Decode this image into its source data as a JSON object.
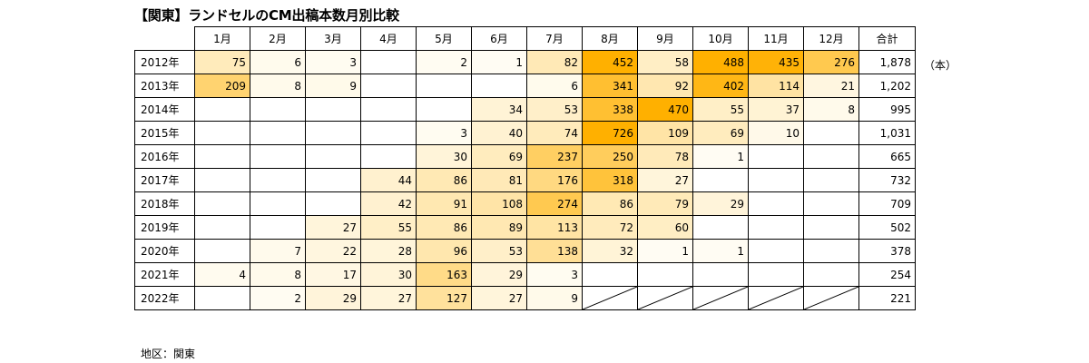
{
  "chart_data": {
    "type": "table",
    "title": "【関東】ランドセルのCM出稿本数月別比較",
    "unit": "（本）",
    "footnote": "地区：関東",
    "columns": [
      "1月",
      "2月",
      "3月",
      "4月",
      "5月",
      "6月",
      "7月",
      "8月",
      "9月",
      "10月",
      "11月",
      "12月"
    ],
    "total_label": "合計",
    "colors": {
      "low": "#fffdf5",
      "high": "#ffb000",
      "max_value": 726
    },
    "rows": [
      {
        "year": "2012年",
        "values": [
          75,
          6,
          3,
          null,
          2,
          1,
          82,
          452,
          58,
          488,
          435,
          276
        ],
        "total": "1,878"
      },
      {
        "year": "2013年",
        "values": [
          209,
          8,
          9,
          null,
          null,
          null,
          6,
          341,
          92,
          402,
          114,
          21
        ],
        "total": "1,202"
      },
      {
        "year": "2014年",
        "values": [
          null,
          null,
          null,
          null,
          null,
          34,
          53,
          338,
          470,
          55,
          37,
          8
        ],
        "total": "995"
      },
      {
        "year": "2015年",
        "values": [
          null,
          null,
          null,
          null,
          3,
          40,
          74,
          726,
          109,
          69,
          10,
          null
        ],
        "total": "1,031"
      },
      {
        "year": "2016年",
        "values": [
          null,
          null,
          null,
          null,
          30,
          69,
          237,
          250,
          78,
          1,
          null,
          null
        ],
        "total": "665"
      },
      {
        "year": "2017年",
        "values": [
          null,
          null,
          null,
          44,
          86,
          81,
          176,
          318,
          27,
          null,
          null,
          null
        ],
        "total": "732"
      },
      {
        "year": "2018年",
        "values": [
          null,
          null,
          null,
          42,
          91,
          108,
          274,
          86,
          79,
          29,
          null,
          null
        ],
        "total": "709"
      },
      {
        "year": "2019年",
        "values": [
          null,
          null,
          27,
          55,
          86,
          89,
          113,
          72,
          60,
          null,
          null,
          null
        ],
        "total": "502"
      },
      {
        "year": "2020年",
        "values": [
          null,
          7,
          22,
          28,
          96,
          53,
          138,
          32,
          1,
          1,
          null,
          null
        ],
        "total": "378"
      },
      {
        "year": "2021年",
        "values": [
          4,
          8,
          17,
          30,
          163,
          29,
          3,
          null,
          null,
          null,
          null,
          null
        ],
        "total": "254"
      },
      {
        "year": "2022年",
        "values": [
          null,
          2,
          29,
          27,
          127,
          27,
          9,
          "na",
          "na",
          "na",
          "na",
          "na"
        ],
        "total": "221"
      }
    ]
  }
}
